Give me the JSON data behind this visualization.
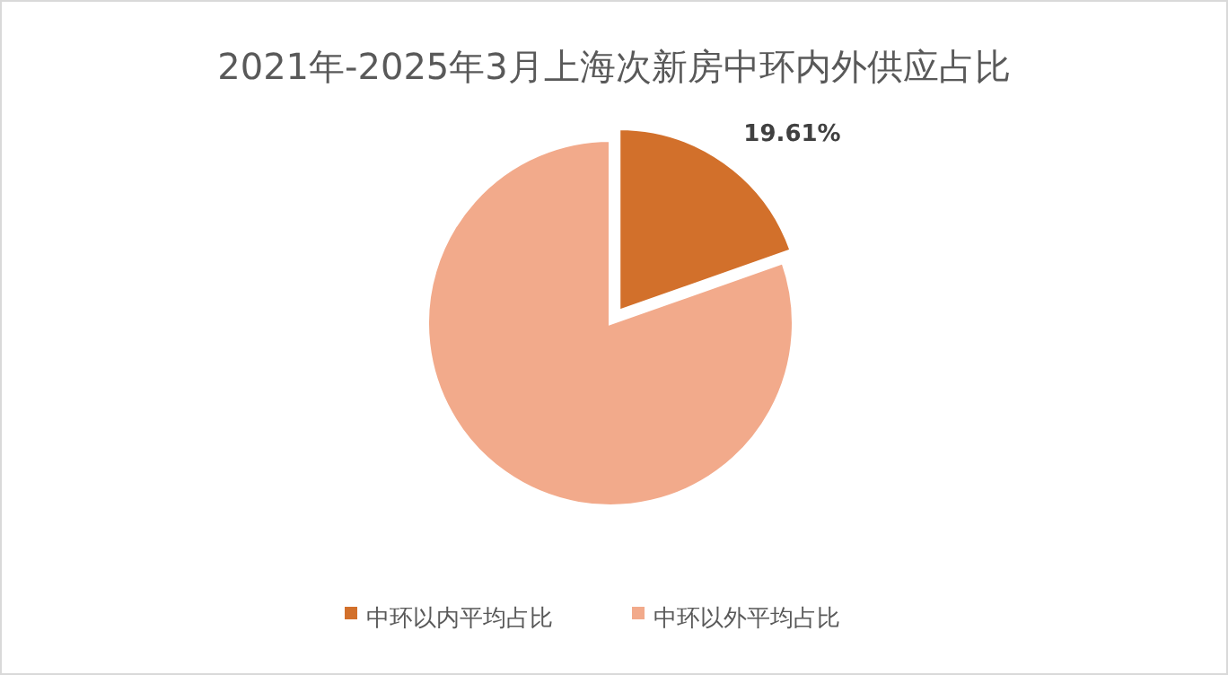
{
  "chart_data": {
    "type": "pie",
    "title": "2021年-2025年3月上海次新房中环内外供应占比",
    "categories": [
      "中环以内平均占比",
      "中环以外平均占比"
    ],
    "values": [
      19.61,
      80.39
    ],
    "colors": [
      "#d2702b",
      "#f2aa8b"
    ],
    "value_labels": [
      "19.61%",
      null
    ],
    "legend": "bottom"
  }
}
